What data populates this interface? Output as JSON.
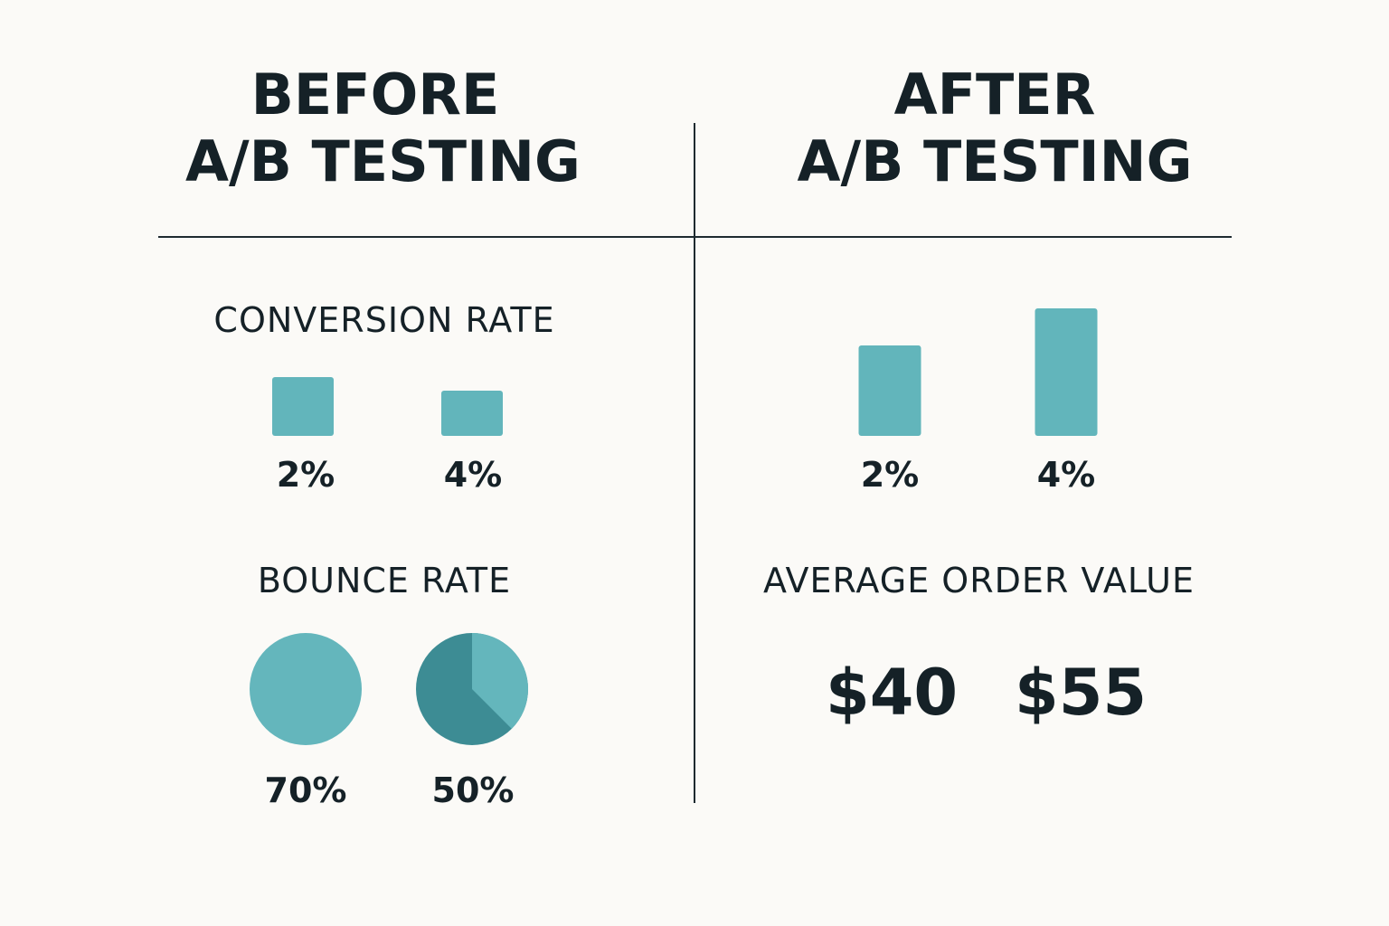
{
  "before": {
    "heading_line1": "BEFORE",
    "heading_line2": "A/B TESTING"
  },
  "after": {
    "heading_line1": "AFTER",
    "heading_line2": "A/B TESTING"
  },
  "colors": {
    "bar": "#62b5bb",
    "pie_light": "#64b6bc",
    "pie_dark": "#3d8c94",
    "text": "#152127",
    "divider": "#1e2a30",
    "background": "#fbfaf7"
  },
  "chart_data": [
    {
      "type": "bar",
      "title": "CONVERSION RATE",
      "panel": "before",
      "categories": [
        "2%",
        "4%"
      ],
      "values": [
        2,
        4
      ]
    },
    {
      "type": "bar",
      "title": "",
      "panel": "after",
      "categories": [
        "2%",
        "4%"
      ],
      "values": [
        2,
        4
      ]
    },
    {
      "type": "pie",
      "title": "BOUNCE RATE",
      "panel": "before",
      "categories": [
        "70%",
        "50%"
      ],
      "values": [
        70,
        50
      ]
    },
    {
      "type": "table",
      "title": "AVERAGE ORDER VALUE",
      "panel": "after",
      "values": [
        "$40",
        "$55"
      ]
    }
  ]
}
